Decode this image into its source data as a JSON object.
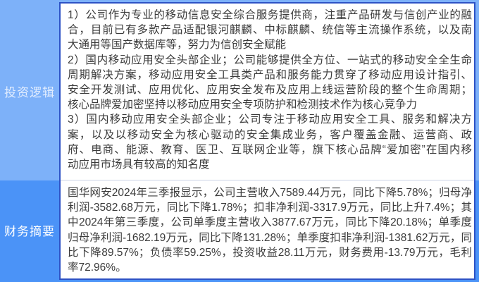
{
  "page": {
    "background_top_color": "#7db1f9",
    "background_bottom_color": "#4b93f7",
    "panel_border_color": "#2d52c5",
    "divider_color": "#ccd4e6",
    "text_color": "#3b3b3b"
  },
  "sections": {
    "investment": {
      "label": "投资逻辑",
      "lines": [
        "1）公司作为专业的移动信息安全综合服务提供商，注重产品研发与信创产业的融",
        "合，目前已有多款产品适配银河麒麟、中标麒麟、统信等主流操作系统，以及南",
        "大通用等国产数据库等，努力为信创安全赋能",
        "2）国内移动应用安全头部企业；公司能够提供全方位、一站式的移动安全全生命",
        "周期解决方案，移动应用安全工具类产品和服务能力贯穿了移动应用设计指引、",
        "安全开发测试、应用优化、应用安全发布及应用上线运营阶段的整个生命周期；",
        "核心品牌爱加密坚持以移动应用安全专项防护和检测技术作为核心竞争力",
        "3）国内移动应用安全头部企业；公司专注于移动应用安全工具、服务和解决方",
        "案，以及以移动安全为核心驱动的安全集成业务，客户覆盖金融、运营商、政",
        "府、电商、能源、教育、医卫、互联网企业等，旗下核心品牌“爱加密”在国内移",
        "动应用市场具有较高的知名度"
      ]
    },
    "finance": {
      "label": "财务摘要",
      "lines": [
        "国华网安2024年三季报显示，公司主营收入7589.44万元，同比下降5.78%；归母净",
        "利润-3582.68万元，同比下降1.78%；扣非净利润-3317.9万元，同比上升7.4%；其",
        "中2024年第三季度，公司单季度主营收入3877.67万元，同比下降20.18%；单季度",
        "归母净利润-1682.19万元，同比下降131.28%；单季度扣非净利润-1381.62万元，同",
        "比下降89.57%；负债率59.25%，投资收益28.11万元，财务费用-13.79万元，毛利",
        "率72.96%。"
      ]
    }
  }
}
